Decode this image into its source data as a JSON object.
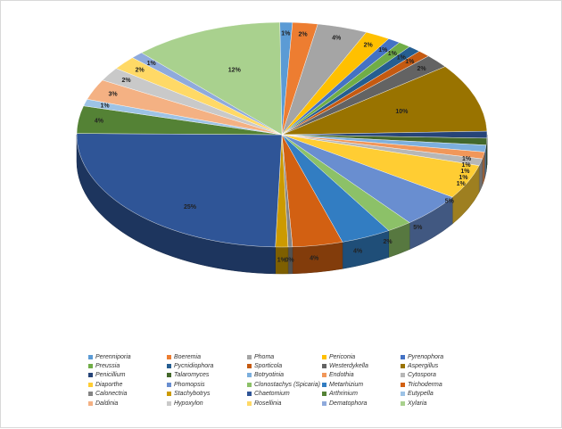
{
  "chart_data": {
    "type": "pie",
    "title": "",
    "legend_position": "bottom",
    "style": "3d-tilted",
    "slices": [
      {
        "label": "Perenniporia",
        "value": 1,
        "display": "1%",
        "color": "#5b9bd5"
      },
      {
        "label": "Boeremia",
        "value": 2,
        "display": "2%",
        "color": "#ed7d31"
      },
      {
        "label": "Phoma",
        "value": 4,
        "display": "4%",
        "color": "#a5a5a5"
      },
      {
        "label": "Periconia",
        "value": 2,
        "display": "2%",
        "color": "#ffc000"
      },
      {
        "label": "Pyrenophora",
        "value": 1,
        "display": "1%",
        "color": "#4472c4"
      },
      {
        "label": "Preussia",
        "value": 1,
        "display": "1%",
        "color": "#70ad47"
      },
      {
        "label": "Pycnidiophora",
        "value": 1,
        "display": "1%",
        "color": "#255e91"
      },
      {
        "label": "Sporticola",
        "value": 1,
        "display": "1%",
        "color": "#c55a11"
      },
      {
        "label": "Westerdykella",
        "value": 2,
        "display": "2%",
        "color": "#636363"
      },
      {
        "label": "Aspergillus",
        "value": 10,
        "display": "10%",
        "color": "#997300"
      },
      {
        "label": "Penicillium",
        "value": 1,
        "display": "1%",
        "color": "#264478"
      },
      {
        "label": "Talaromyces",
        "value": 1,
        "display": "1%",
        "color": "#43682b"
      },
      {
        "label": "Botryotinia",
        "value": 1,
        "display": "1%",
        "color": "#7cafdd"
      },
      {
        "label": "Endothia",
        "value": 1,
        "display": "1%",
        "color": "#f1975a"
      },
      {
        "label": "Cytospora",
        "value": 1,
        "display": "1%",
        "color": "#b7b7b7"
      },
      {
        "label": "Diaporthe",
        "value": 5,
        "display": "5%",
        "color": "#ffcd33"
      },
      {
        "label": "Phomopsis",
        "value": 5,
        "display": "5%",
        "color": "#698ed0"
      },
      {
        "label": "Clonostachys (Spicaria)",
        "value": 2,
        "display": "2%",
        "color": "#8cc168"
      },
      {
        "label": "Metarhizium",
        "value": 4,
        "display": "4%",
        "color": "#327dc2"
      },
      {
        "label": "Trichoderma",
        "value": 4,
        "display": "4%",
        "color": "#d26012"
      },
      {
        "label": "Calonectria",
        "value": 0,
        "display": "0%",
        "color": "#848484"
      },
      {
        "label": "Stachybotrys",
        "value": 1,
        "display": "1%",
        "color": "#cc9a00"
      },
      {
        "label": "Chaetomium",
        "value": 25,
        "display": "25%",
        "color": "#2f5597"
      },
      {
        "label": "Arthrinium",
        "value": 4,
        "display": "4%",
        "color": "#548235"
      },
      {
        "label": "Eutypella",
        "value": 1,
        "display": "1%",
        "color": "#9dc3e6"
      },
      {
        "label": "Daldinia",
        "value": 3,
        "display": "3%",
        "color": "#f4b183"
      },
      {
        "label": "Hypoxylon",
        "value": 2,
        "display": "2%",
        "color": "#c9c9c9"
      },
      {
        "label": "Rosellinia",
        "value": 2,
        "display": "2%",
        "color": "#ffd966"
      },
      {
        "label": "Dematophora",
        "value": 1,
        "display": "1%",
        "color": "#8faadc"
      },
      {
        "label": "Xylaria",
        "value": 12,
        "display": "12%",
        "color": "#a9d18e"
      }
    ],
    "legend_order": [
      "Perenniporia",
      "Boeremia",
      "Phoma",
      "Periconia",
      "Pyrenophora",
      "Preussia",
      "Pycnidiophora",
      "Sporticola",
      "Westerdykella",
      "Aspergillus",
      "Penicillium",
      "Talaromyces",
      "Botryotinia",
      "Endothia",
      "Cytospora",
      "Diaporthe",
      "Phomopsis",
      "Clonostachys (Spicaria)",
      "Metarhizium",
      "Trichoderma",
      "Calonectria",
      "Stachybotrys",
      "Chaetomium",
      "Arthrinium",
      "Eutypella",
      "Daldinia",
      "Hypoxylon",
      "Rosellinia",
      "Dematophora",
      "Xylaria"
    ]
  }
}
